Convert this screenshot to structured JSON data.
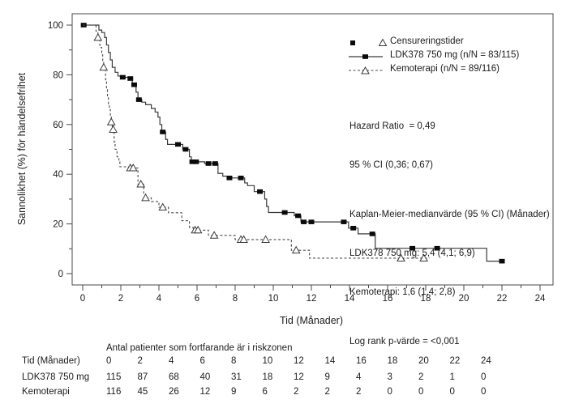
{
  "legend": {
    "censored": "Censureringstider",
    "ldk": "LDK378 750 mg (n/N = 83/115)",
    "kemo": "Kemoterapi (n/N = 89/116)"
  },
  "stats": {
    "hazard_ratio": "Hazard Ratio  = 0,49",
    "ci": "95 % CI (0,36; 0,67)",
    "km_header": "Kaplan-Meier-medianvärde (95 % CI) (Månader)",
    "km_ldk": "LDK378 750 mg: 5,4 (4,1; 6,9)",
    "km_kemo": "Kemoterapi: 1,6 (1,4; 2,8)",
    "log_rank": "Log rank p-värde = <0,001"
  },
  "risk_table": {
    "header": "Antal patienter som fortfarande är i riskzonen",
    "rows": [
      {
        "label": "Tid (Månader)",
        "values": [
          0,
          2,
          4,
          6,
          8,
          10,
          12,
          14,
          16,
          18,
          20,
          22,
          24
        ]
      },
      {
        "label": "LDK378 750 mg",
        "values": [
          115,
          87,
          68,
          40,
          31,
          18,
          12,
          9,
          4,
          3,
          2,
          1,
          0
        ]
      },
      {
        "label": "Kemoterapi",
        "values": [
          116,
          45,
          26,
          12,
          9,
          6,
          2,
          2,
          2,
          0,
          0,
          0,
          0
        ]
      }
    ]
  },
  "chart_data": {
    "type": "line",
    "subtype": "kaplan-meier-step",
    "xlabel": "Tid (Månader)",
    "ylabel": "Sannolikhet (%) för händelsefrihet",
    "xlim": [
      0,
      24
    ],
    "ylim": [
      0,
      100
    ],
    "x_ticks": [
      0,
      2,
      4,
      6,
      8,
      10,
      12,
      14,
      16,
      18,
      20,
      22,
      24
    ],
    "x_minor": [
      1,
      3,
      5,
      7,
      9,
      11,
      13,
      15,
      17,
      19,
      21,
      23
    ],
    "y_ticks": [
      0,
      20,
      40,
      60,
      80,
      100
    ],
    "y_minor": [
      10,
      30,
      50,
      70,
      90
    ],
    "grid": false,
    "legend_position": "upper right",
    "hazard_ratio": "0,49",
    "hazard_ratio_ci": "(0,36; 0,67)",
    "log_rank_p": "<0,001",
    "series": [
      {
        "name": "LDK378 750 mg (n/N = 83/115)",
        "style": "solid",
        "marker": "filled-square",
        "median_months": "5,4 (4,1; 6,9)",
        "color": "#3a3a3a",
        "steps": [
          [
            0,
            100
          ],
          [
            0.85,
            98
          ],
          [
            1.0,
            97
          ],
          [
            1.15,
            95
          ],
          [
            1.25,
            92
          ],
          [
            1.35,
            89
          ],
          [
            1.45,
            86
          ],
          [
            1.55,
            83
          ],
          [
            1.7,
            81
          ],
          [
            1.85,
            79.5
          ],
          [
            2.0,
            79
          ],
          [
            2.4,
            78.5
          ],
          [
            2.6,
            76
          ],
          [
            2.8,
            73
          ],
          [
            2.9,
            70
          ],
          [
            3.1,
            69
          ],
          [
            3.3,
            68
          ],
          [
            3.6,
            66.5
          ],
          [
            3.8,
            65
          ],
          [
            3.95,
            63
          ],
          [
            4.05,
            60
          ],
          [
            4.15,
            57
          ],
          [
            4.35,
            54
          ],
          [
            4.45,
            52
          ],
          [
            5.25,
            50
          ],
          [
            5.6,
            47
          ],
          [
            5.7,
            45
          ],
          [
            6.4,
            44.3
          ],
          [
            7.1,
            40.3
          ],
          [
            7.35,
            39.2
          ],
          [
            7.6,
            38.5
          ],
          [
            8.5,
            36.5
          ],
          [
            8.65,
            35.4
          ],
          [
            9.0,
            33
          ],
          [
            9.55,
            30
          ],
          [
            9.65,
            27
          ],
          [
            9.75,
            24.6
          ],
          [
            11.1,
            23.3
          ],
          [
            11.45,
            20.8
          ],
          [
            13.95,
            18.3
          ],
          [
            14.45,
            16
          ],
          [
            15.35,
            10.2
          ],
          [
            21.2,
            5
          ],
          [
            22.15,
            5
          ]
        ],
        "censor_marks": [
          [
            0.05,
            100
          ],
          [
            2.1,
            79
          ],
          [
            2.5,
            78.5
          ],
          [
            2.7,
            76
          ],
          [
            2.95,
            70
          ],
          [
            4.2,
            57
          ],
          [
            5.0,
            52
          ],
          [
            5.4,
            50
          ],
          [
            5.75,
            45
          ],
          [
            5.95,
            45
          ],
          [
            6.6,
            44.3
          ],
          [
            6.95,
            44.3
          ],
          [
            7.7,
            38.5
          ],
          [
            8.3,
            38.5
          ],
          [
            9.3,
            33
          ],
          [
            10.6,
            24.6
          ],
          [
            11.3,
            23.3
          ],
          [
            11.6,
            20.8
          ],
          [
            12.0,
            20.8
          ],
          [
            13.7,
            20.8
          ],
          [
            14.2,
            18.3
          ],
          [
            15.2,
            16
          ],
          [
            17.3,
            10.2
          ],
          [
            18.6,
            10.2
          ],
          [
            22.0,
            5
          ]
        ]
      },
      {
        "name": "Kemoterapi (n/N = 89/116)",
        "style": "dashed",
        "marker": "open-triangle",
        "median_months": "1,6 (1,4; 2,8)",
        "color": "#4a4a4a",
        "steps": [
          [
            0,
            100
          ],
          [
            0.7,
            97.5
          ],
          [
            0.8,
            95
          ],
          [
            0.9,
            91
          ],
          [
            1.0,
            88
          ],
          [
            1.05,
            85
          ],
          [
            1.1,
            83
          ],
          [
            1.2,
            78
          ],
          [
            1.25,
            74
          ],
          [
            1.3,
            71
          ],
          [
            1.35,
            68
          ],
          [
            1.4,
            66
          ],
          [
            1.45,
            63
          ],
          [
            1.5,
            61
          ],
          [
            1.55,
            58
          ],
          [
            1.65,
            53
          ],
          [
            1.7,
            50
          ],
          [
            1.8,
            47
          ],
          [
            1.9,
            45
          ],
          [
            1.95,
            43
          ],
          [
            2.4,
            42.5
          ],
          [
            2.9,
            36
          ],
          [
            3.2,
            32
          ],
          [
            3.3,
            30.5
          ],
          [
            3.6,
            29
          ],
          [
            4.0,
            26.7
          ],
          [
            4.5,
            24.5
          ],
          [
            5.2,
            21.3
          ],
          [
            5.6,
            18.6
          ],
          [
            5.8,
            17.5
          ],
          [
            6.6,
            15.4
          ],
          [
            8.0,
            13.7
          ],
          [
            10.95,
            9.4
          ],
          [
            11.9,
            6.2
          ],
          [
            18.2,
            6.2
          ]
        ],
        "censor_marks": [
          [
            0.8,
            95
          ],
          [
            1.1,
            83
          ],
          [
            1.5,
            61
          ],
          [
            1.6,
            58
          ],
          [
            2.5,
            42.5
          ],
          [
            2.65,
            42.5
          ],
          [
            3.05,
            36
          ],
          [
            3.3,
            30.5
          ],
          [
            4.2,
            26.7
          ],
          [
            5.9,
            17.5
          ],
          [
            6.05,
            17.5
          ],
          [
            6.9,
            15.4
          ],
          [
            8.3,
            13.7
          ],
          [
            8.45,
            13.7
          ],
          [
            9.6,
            13.7
          ],
          [
            11.2,
            9.4
          ],
          [
            16.7,
            6.2
          ],
          [
            17.9,
            6.2
          ]
        ]
      }
    ]
  }
}
